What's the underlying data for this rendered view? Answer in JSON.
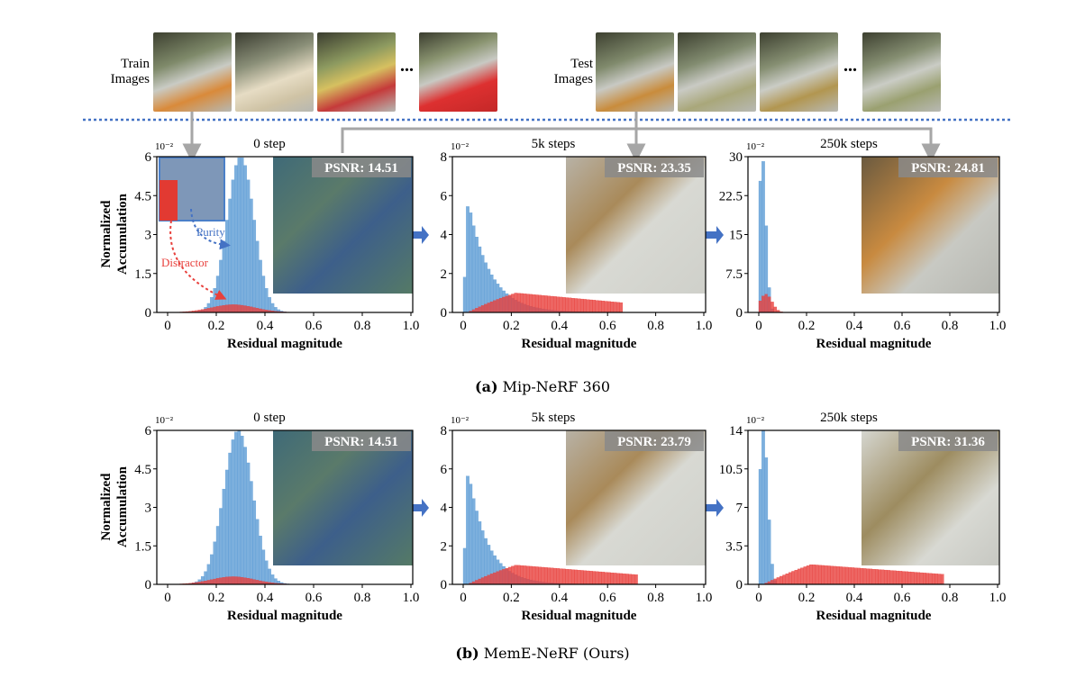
{
  "train_label": "Train\nImages",
  "test_label": "Test\nImages",
  "ellipsis": "...",
  "colors": {
    "purity": "#5b9bd5",
    "distractor": "#e8403c",
    "arrow": "#4472c4",
    "divider": "#4472c4",
    "gray_arrow": "#a6a6a6"
  },
  "ylabel": "Normalized\nAccumulation",
  "xlabel": "Residual magnitude",
  "exp_label": "10⁻²",
  "annotations": {
    "purity": "Purity",
    "distractor": "Distractor"
  },
  "captions": {
    "a_label": "(a)",
    "a_text": "Mip-NeRF 360",
    "b_label": "(b)",
    "b_text": "MemE-NeRF (Ours)"
  },
  "chart_data": [
    {
      "type": "bar",
      "row": "a",
      "title": "0 step",
      "psnr": "PSNR: 14.51",
      "xlim": [
        0,
        1.0
      ],
      "ylim": [
        0,
        6
      ],
      "yticks": [
        "0",
        "1.5",
        "3",
        "4.5",
        "6"
      ],
      "xticks": [
        "0",
        "0.2",
        "0.4",
        "0.6",
        "0.8",
        "1.0"
      ],
      "series": [
        {
          "name": "Purity",
          "dist": "gauss",
          "params": [
            0.3,
            0.055,
            6.0
          ]
        },
        {
          "name": "Distractor",
          "dist": "gauss",
          "params": [
            0.27,
            0.09,
            0.3
          ]
        }
      ]
    },
    {
      "type": "bar",
      "row": "a",
      "title": "5k steps",
      "psnr": "PSNR: 23.35",
      "xlim": [
        0,
        1.0
      ],
      "ylim": [
        0,
        8
      ],
      "yticks": [
        "0",
        "2",
        "4",
        "6",
        "8"
      ],
      "xticks": [
        "0",
        "0.2",
        "0.4",
        "0.6",
        "0.8",
        "1.0"
      ],
      "series": [
        {
          "name": "Purity",
          "dist": "decay",
          "params": [
            0.02,
            5.8,
            0.09
          ]
        },
        {
          "name": "Distractor",
          "dist": "broad",
          "params": [
            0.22,
            1.0,
            0.66
          ]
        }
      ]
    },
    {
      "type": "bar",
      "row": "a",
      "title": "250k steps",
      "psnr": "PSNR: 24.81",
      "xlim": [
        0,
        1.0
      ],
      "ylim": [
        0,
        30
      ],
      "yticks": [
        "0",
        "7.5",
        "15",
        "22.5",
        "30"
      ],
      "xticks": [
        "0",
        "0.2",
        "0.4",
        "0.6",
        "0.8",
        "1.0"
      ],
      "series": [
        {
          "name": "Purity",
          "dist": "gauss",
          "params": [
            0.015,
            0.015,
            30
          ]
        },
        {
          "name": "Distractor",
          "dist": "gauss",
          "params": [
            0.03,
            0.025,
            3.5
          ]
        }
      ]
    },
    {
      "type": "bar",
      "row": "b",
      "title": "0 step",
      "psnr": "PSNR: 14.51",
      "xlim": [
        0,
        1.0
      ],
      "ylim": [
        0,
        6
      ],
      "yticks": [
        "0",
        "1.5",
        "3",
        "4.5",
        "6"
      ],
      "xticks": [
        "0",
        "0.2",
        "0.4",
        "0.6",
        "0.8",
        "1.0"
      ],
      "series": [
        {
          "name": "Purity",
          "dist": "gauss",
          "params": [
            0.29,
            0.06,
            6.0
          ]
        },
        {
          "name": "Distractor",
          "dist": "gauss",
          "params": [
            0.27,
            0.09,
            0.3
          ]
        }
      ]
    },
    {
      "type": "bar",
      "row": "b",
      "title": "5k steps",
      "psnr": "PSNR: 23.79",
      "xlim": [
        0,
        1.0
      ],
      "ylim": [
        0,
        8
      ],
      "yticks": [
        "0",
        "2",
        "4",
        "6",
        "8"
      ],
      "xticks": [
        "0",
        "0.2",
        "0.4",
        "0.6",
        "0.8",
        "1.0"
      ],
      "series": [
        {
          "name": "Purity",
          "dist": "decay",
          "params": [
            0.02,
            6.0,
            0.08
          ]
        },
        {
          "name": "Distractor",
          "dist": "broad",
          "params": [
            0.22,
            1.0,
            0.72
          ]
        }
      ]
    },
    {
      "type": "bar",
      "row": "b",
      "title": "250k steps",
      "psnr": "PSNR: 31.36",
      "xlim": [
        0,
        1.0
      ],
      "ylim": [
        0,
        14
      ],
      "yticks": [
        "0",
        "3.5",
        "7",
        "10.5",
        "14"
      ],
      "xticks": [
        "0",
        "0.2",
        "0.4",
        "0.6",
        "0.8",
        "1.0"
      ],
      "series": [
        {
          "name": "Purity",
          "dist": "gauss",
          "params": [
            0.02,
            0.018,
            14
          ]
        },
        {
          "name": "Distractor",
          "dist": "broad",
          "params": [
            0.22,
            1.8,
            0.78
          ]
        }
      ]
    }
  ]
}
